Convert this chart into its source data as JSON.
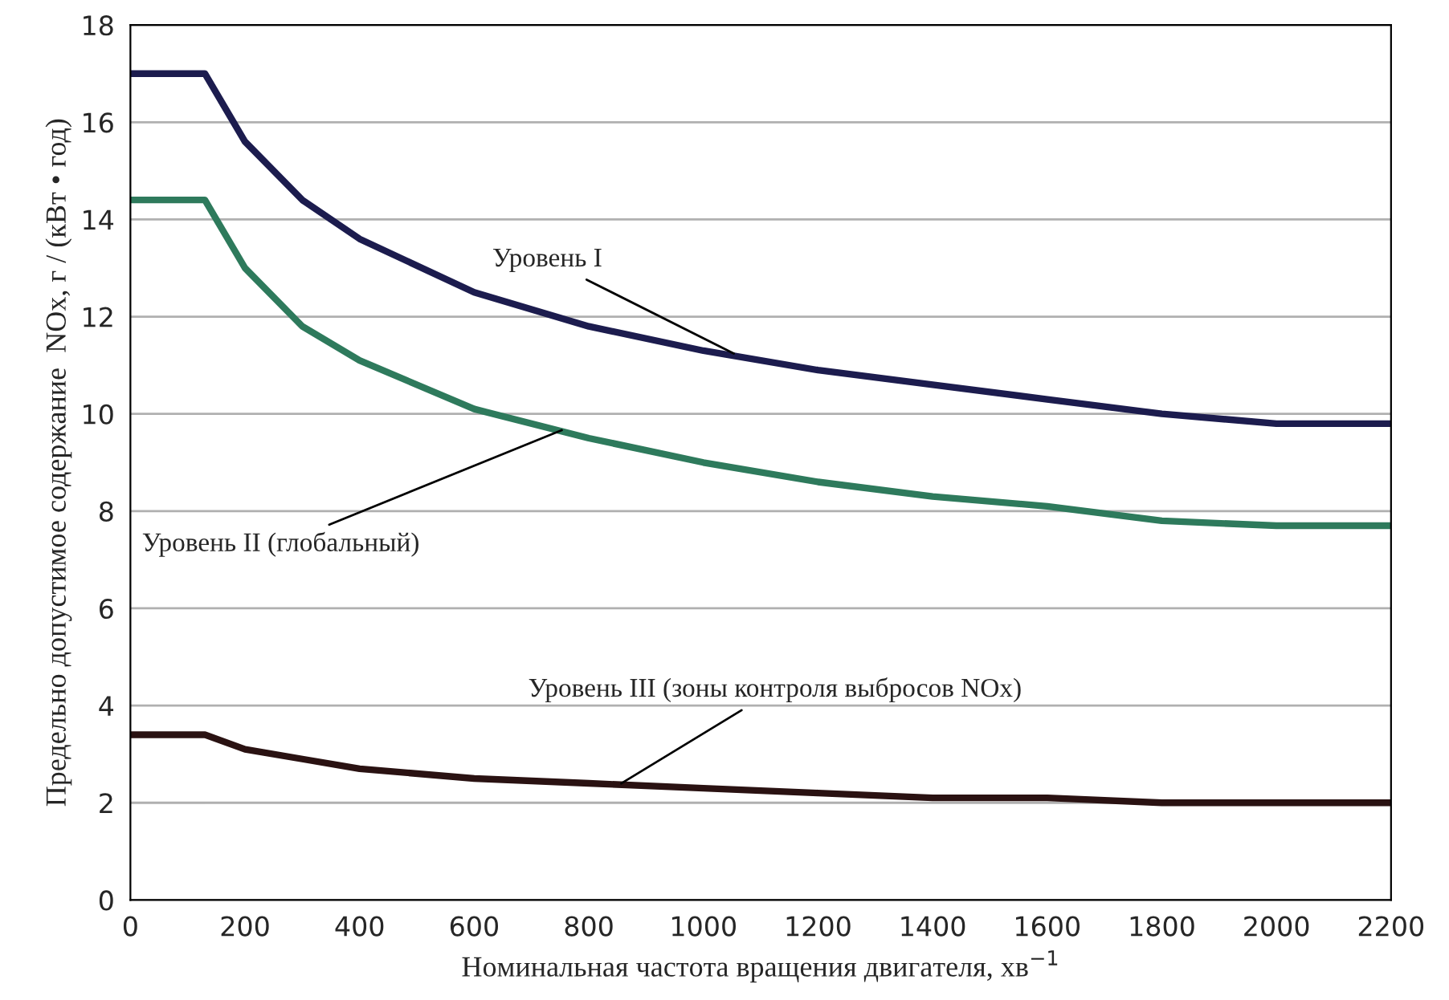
{
  "chart_data": {
    "type": "line",
    "xlabel": "Номинальная частота вращения двигателя, хв$^{−1}$",
    "ylabel": "Предельно допустимое содержание  NOx, г / (кВт • год)",
    "xlim": [
      0,
      2200
    ],
    "xticks": [
      0,
      200,
      400,
      600,
      800,
      1000,
      1200,
      1400,
      1600,
      1800,
      2000,
      2200
    ],
    "ylim": [
      0,
      18
    ],
    "yticks": [
      0,
      2,
      4,
      6,
      8,
      10,
      12,
      14,
      16,
      18
    ],
    "grid": "y",
    "legend": false,
    "marker": "none",
    "line_style": "solid",
    "series": [
      {
        "color": "#1c1c4e",
        "x": [
          0,
          130,
          200,
          300,
          400,
          600,
          800,
          1000,
          1200,
          1400,
          1600,
          1800,
          2000,
          2200
        ],
        "values": [
          17.0,
          17.0,
          15.6,
          14.4,
          13.6,
          12.5,
          11.8,
          11.3,
          10.9,
          10.6,
          10.3,
          10.0,
          9.8,
          9.8
        ]
      },
      {
        "color": "#2e7a5c",
        "x": [
          0,
          130,
          200,
          300,
          400,
          600,
          800,
          1000,
          1200,
          1400,
          1600,
          1800,
          2000,
          2200
        ],
        "values": [
          14.4,
          14.4,
          13.0,
          11.8,
          11.1,
          10.1,
          9.5,
          9.0,
          8.6,
          8.3,
          8.1,
          7.8,
          7.7,
          7.7
        ]
      },
      {
        "color": "#2a1212",
        "x": [
          0,
          130,
          200,
          300,
          400,
          600,
          800,
          1000,
          1200,
          1400,
          1600,
          1800,
          2000,
          2200
        ],
        "values": [
          3.4,
          3.4,
          3.1,
          2.9,
          2.7,
          2.5,
          2.4,
          2.3,
          2.2,
          2.1,
          2.1,
          2.0,
          2.0,
          2.0
        ]
      }
    ],
    "annotations": [
      {
        "text": "Уровень I",
        "x": 1060,
        "y": 11.2
      },
      {
        "text": "Уровень II (глобальный)",
        "x": 760,
        "y": 9.7
      },
      {
        "text": "Уровень III (зоны контроля выбросов NOx)",
        "x": 850,
        "y": 2.35
      }
    ]
  }
}
